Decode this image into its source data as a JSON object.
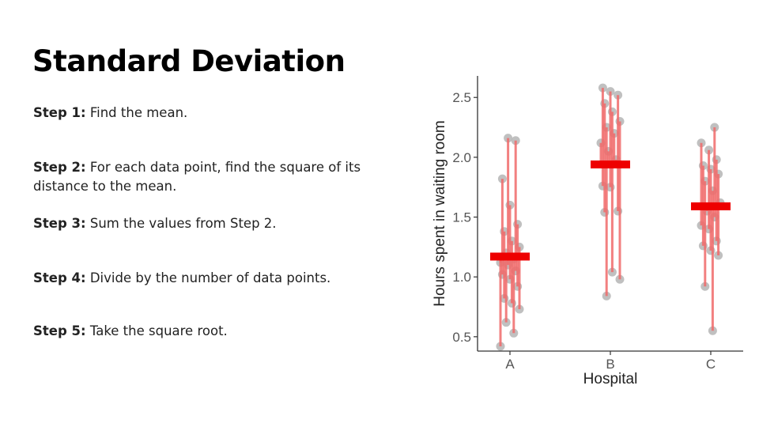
{
  "slide": {
    "title": "Standard Deviation",
    "steps": [
      {
        "label": "Step 1:",
        "text": " Find the mean."
      },
      {
        "label": "Step 2:",
        "text": " For each data point, find the square of its distance to the mean."
      },
      {
        "label": "Step 3:",
        "text": " Sum the values from Step 2."
      },
      {
        "label": "Step 4:",
        "text": " Divide by the number of data points."
      },
      {
        "label": "Step 5:",
        "text": " Take the square root."
      }
    ]
  },
  "colors": {
    "mean_bar": "#ee0000",
    "deviation_line": "#f06a6a",
    "point": "#b5b5b5"
  },
  "chart_data": {
    "type": "scatter",
    "title": "",
    "xlabel": "Hospital",
    "ylabel": "Hours spent in waiting room",
    "categories": [
      "A",
      "B",
      "C"
    ],
    "yticks": [
      "0.5",
      "1.0",
      "1.5",
      "2.0",
      "2.5"
    ],
    "ylim": [
      0.38,
      2.68
    ],
    "grid": false,
    "series": [
      {
        "category": "A",
        "mean": 1.17,
        "points": [
          0.42,
          0.53,
          0.62,
          0.73,
          0.78,
          0.82,
          0.92,
          0.98,
          1.02,
          1.05,
          1.1,
          1.12,
          1.15,
          1.2,
          1.25,
          1.3,
          1.38,
          1.44,
          1.6,
          1.82,
          2.14,
          2.16
        ]
      },
      {
        "category": "B",
        "mean": 1.94,
        "points": [
          0.84,
          0.98,
          1.04,
          1.54,
          1.55,
          1.75,
          1.76,
          1.98,
          2.05,
          2.12,
          2.2,
          2.25,
          2.3,
          2.38,
          2.45,
          2.52,
          2.55,
          2.58
        ]
      },
      {
        "category": "C",
        "mean": 1.59,
        "points": [
          0.55,
          0.92,
          1.18,
          1.22,
          1.26,
          1.3,
          1.4,
          1.43,
          1.5,
          1.55,
          1.62,
          1.72,
          1.8,
          1.86,
          1.9,
          1.93,
          1.98,
          2.06,
          2.12,
          2.25
        ]
      }
    ]
  }
}
